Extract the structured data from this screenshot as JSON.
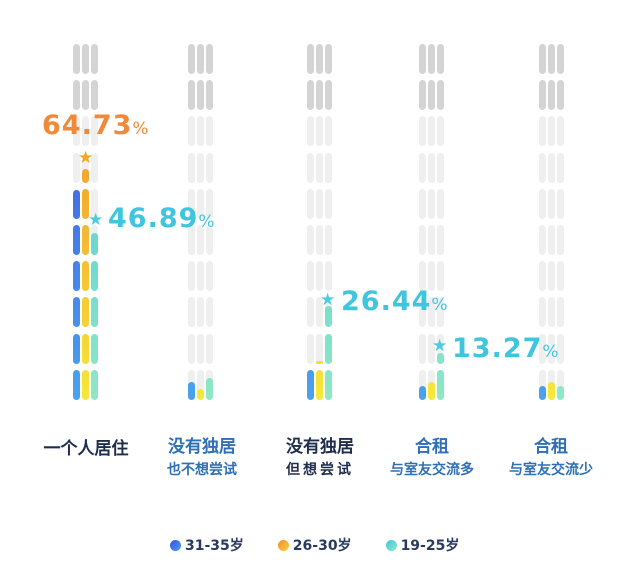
{
  "chart_data": {
    "type": "bar",
    "title": "",
    "categories": [
      "一个人居住",
      "没有独居 也不想尝试",
      "没有独居 但想尝试",
      "合租 与室友交流多",
      "合租 与室友交流少"
    ],
    "series": [
      {
        "name": "31-35岁",
        "color": "#3b5bdb",
        "values": [
          59,
          5,
          10,
          4,
          4
        ]
      },
      {
        "name": "26-30岁",
        "color": "#f39a2f",
        "values": [
          64.73,
          3,
          11,
          5,
          5
        ]
      },
      {
        "name": "19-25岁",
        "color": "#4fd1c5",
        "values": [
          46.89,
          6,
          26.44,
          13.27,
          4
        ]
      }
    ],
    "highlights": [
      {
        "category": "一个人居住",
        "series": "26-30岁",
        "value": "64.73",
        "color": "#f08a3a"
      },
      {
        "category": "一个人居住",
        "series": "19-25岁",
        "value": "46.89",
        "color": "#3fc6de"
      },
      {
        "category": "没有独居 但想尝试",
        "series": "19-25岁",
        "value": "26.44",
        "color": "#3fc6de"
      },
      {
        "category": "合租 与室友交流多",
        "series": "19-25岁",
        "value": "13.27",
        "color": "#3fc6de"
      }
    ],
    "ylim": [
      0,
      100
    ],
    "legend_position": "bottom",
    "grid": false
  },
  "labels": [
    {
      "line1": "一个人居住",
      "line2": "",
      "color": "#1f2d4d"
    },
    {
      "line1": "没有独居",
      "line2": "也不想尝试",
      "color": "#2e6fb5"
    },
    {
      "line1": "没有独居",
      "line2": "但想尝试",
      "color": "#1f2d4d"
    },
    {
      "line1": "合租",
      "line2": "与室友交流多",
      "color": "#2e6fb5"
    },
    {
      "line1": "合租",
      "line2": "与室友交流少",
      "color": "#2e6fb5"
    }
  ],
  "callouts": [
    {
      "value": "64.73",
      "unit": "%"
    },
    {
      "value": "46.89",
      "unit": "%"
    },
    {
      "value": "26.44",
      "unit": "%"
    },
    {
      "value": "13.27",
      "unit": "%"
    }
  ],
  "legend": [
    {
      "label": "31-35岁"
    },
    {
      "label": "26-30岁"
    },
    {
      "label": "19-25岁"
    }
  ],
  "icons": {
    "star": "★"
  }
}
